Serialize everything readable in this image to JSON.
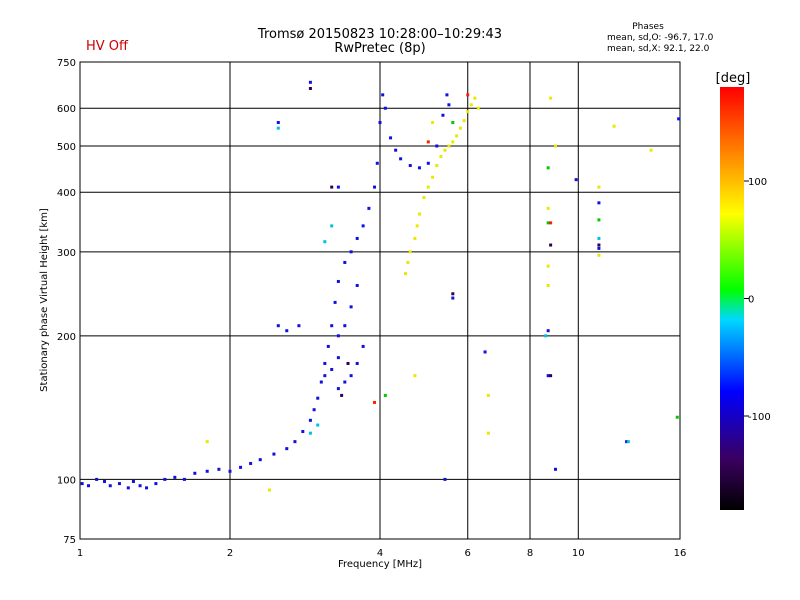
{
  "header": {
    "title_line1": "Tromsø 20150823 10:28:00–10:29:43",
    "title_line2": "RwPretec (8p)",
    "status": "HV Off",
    "status_color": "#cc0000",
    "stats_heading": "Phases",
    "stats_o": "mean, sd,O: -96.7, 17.0",
    "stats_x": "mean, sd,X:  92.1, 22.0"
  },
  "chart_data": {
    "type": "scatter",
    "title": "Tromsø 20150823 10:28:00–10:29:43",
    "subtitle": "RwPretec (8p)",
    "xlabel": "Frequency [MHz]",
    "ylabel": "Stationary phase Virtual Height [km]",
    "x_scale": "log",
    "y_scale": "log",
    "xlim": [
      1,
      16
    ],
    "ylim": [
      75,
      750
    ],
    "x_ticks": [
      1,
      2,
      4,
      6,
      8,
      10,
      16
    ],
    "x_tick_labels": [
      "1",
      "2",
      "4",
      "6",
      "8",
      "10",
      "16"
    ],
    "y_ticks": [
      75,
      100,
      200,
      300,
      400,
      500,
      600,
      750
    ],
    "y_tick_labels": [
      "75",
      "100",
      "200",
      "300",
      "400",
      "500",
      "600",
      "750"
    ],
    "grid": true,
    "colorbar": {
      "label": "[deg]",
      "range": [
        -180,
        180
      ],
      "ticks": [
        100,
        0,
        -100
      ],
      "tick_labels": [
        "100",
        "0",
        "-100"
      ],
      "colors": [
        "#000000",
        "#3a0060",
        "#0000ff",
        "#00d8ff",
        "#00ff00",
        "#ffff00",
        "#ff8000",
        "#ff0000"
      ]
    },
    "series": [
      {
        "color": "#1010e0",
        "points": [
          [
            1.01,
            98
          ],
          [
            1.04,
            97
          ],
          [
            1.08,
            100
          ],
          [
            1.12,
            99
          ],
          [
            1.15,
            97
          ],
          [
            1.2,
            98
          ],
          [
            1.25,
            96
          ],
          [
            1.28,
            99
          ],
          [
            1.32,
            97
          ],
          [
            1.36,
            96
          ],
          [
            1.42,
            98
          ],
          [
            1.48,
            100
          ],
          [
            1.55,
            101
          ],
          [
            1.62,
            100
          ],
          [
            1.7,
            103
          ],
          [
            1.8,
            104
          ],
          [
            1.9,
            105
          ],
          [
            2.0,
            104
          ],
          [
            2.1,
            106
          ],
          [
            2.2,
            108
          ],
          [
            2.3,
            110
          ],
          [
            2.45,
            113
          ],
          [
            2.6,
            116
          ],
          [
            2.7,
            120
          ],
          [
            2.8,
            126
          ],
          [
            2.9,
            133
          ],
          [
            2.95,
            140
          ],
          [
            3.0,
            148
          ],
          [
            3.05,
            160
          ],
          [
            3.1,
            175
          ],
          [
            3.15,
            190
          ],
          [
            3.2,
            210
          ],
          [
            3.25,
            235
          ],
          [
            3.3,
            260
          ],
          [
            3.4,
            285
          ],
          [
            3.5,
            300
          ],
          [
            3.6,
            320
          ],
          [
            3.7,
            340
          ],
          [
            3.8,
            370
          ],
          [
            3.9,
            410
          ],
          [
            3.95,
            460
          ],
          [
            4.0,
            560
          ],
          [
            4.05,
            640
          ],
          [
            4.1,
            600
          ],
          [
            4.2,
            520
          ],
          [
            4.3,
            490
          ],
          [
            4.4,
            470
          ],
          [
            4.6,
            455
          ],
          [
            4.8,
            450
          ],
          [
            5.0,
            460
          ],
          [
            5.2,
            500
          ],
          [
            5.35,
            580
          ],
          [
            5.45,
            640
          ],
          [
            5.5,
            610
          ],
          [
            3.3,
            155
          ],
          [
            3.4,
            160
          ],
          [
            3.5,
            165
          ],
          [
            3.6,
            175
          ],
          [
            3.7,
            190
          ],
          [
            3.3,
            200
          ],
          [
            3.4,
            210
          ],
          [
            3.5,
            230
          ],
          [
            3.6,
            255
          ],
          [
            3.1,
            165
          ],
          [
            3.2,
            170
          ],
          [
            3.3,
            180
          ],
          [
            2.5,
            210
          ],
          [
            2.6,
            205
          ],
          [
            2.75,
            210
          ],
          [
            2.5,
            560
          ],
          [
            2.9,
            680
          ],
          [
            3.3,
            410
          ],
          [
            5.6,
            240
          ],
          [
            6.5,
            185
          ],
          [
            8.7,
            205
          ],
          [
            8.7,
            165
          ],
          [
            9.0,
            105
          ],
          [
            9.9,
            425
          ],
          [
            11.0,
            380
          ],
          [
            11.0,
            305
          ],
          [
            12.5,
            120
          ],
          [
            15.9,
            570
          ],
          [
            5.4,
            100
          ]
        ]
      },
      {
        "color": "#e8e800",
        "points": [
          [
            4.5,
            270
          ],
          [
            4.55,
            285
          ],
          [
            4.6,
            300
          ],
          [
            4.7,
            320
          ],
          [
            4.75,
            340
          ],
          [
            4.8,
            360
          ],
          [
            4.9,
            390
          ],
          [
            5.0,
            410
          ],
          [
            5.1,
            430
          ],
          [
            5.2,
            455
          ],
          [
            5.3,
            475
          ],
          [
            5.4,
            490
          ],
          [
            5.5,
            500
          ],
          [
            5.6,
            510
          ],
          [
            5.7,
            525
          ],
          [
            5.8,
            545
          ],
          [
            5.9,
            565
          ],
          [
            6.0,
            590
          ],
          [
            6.1,
            610
          ],
          [
            6.2,
            630
          ],
          [
            6.3,
            600
          ],
          [
            5.1,
            560
          ],
          [
            4.7,
            165
          ],
          [
            6.6,
            150
          ],
          [
            6.6,
            125
          ],
          [
            8.8,
            630
          ],
          [
            9.0,
            500
          ],
          [
            8.7,
            370
          ],
          [
            8.7,
            280
          ],
          [
            8.7,
            255
          ],
          [
            11.0,
            410
          ],
          [
            11.0,
            295
          ],
          [
            11.8,
            550
          ],
          [
            14.0,
            490
          ],
          [
            1.8,
            120
          ],
          [
            2.4,
            95
          ]
        ]
      },
      {
        "color": "#00c800",
        "points": [
          [
            8.7,
            450
          ],
          [
            8.7,
            345
          ],
          [
            11.0,
            350
          ],
          [
            15.8,
            135
          ],
          [
            5.6,
            560
          ],
          [
            4.1,
            150
          ]
        ]
      },
      {
        "color": "#ff2000",
        "points": [
          [
            3.9,
            145
          ],
          [
            5.0,
            510
          ],
          [
            8.8,
            345
          ],
          [
            6.0,
            640
          ]
        ]
      },
      {
        "color": "#00c0e0",
        "points": [
          [
            2.9,
            125
          ],
          [
            3.0,
            130
          ],
          [
            3.2,
            340
          ],
          [
            3.1,
            315
          ],
          [
            8.6,
            200
          ],
          [
            11.0,
            320
          ],
          [
            12.6,
            120
          ],
          [
            2.5,
            545
          ]
        ]
      },
      {
        "color": "#300050",
        "points": [
          [
            2.9,
            660
          ],
          [
            3.2,
            410
          ],
          [
            8.8,
            310
          ],
          [
            8.8,
            165
          ],
          [
            11.0,
            310
          ],
          [
            5.6,
            245
          ],
          [
            3.35,
            150
          ],
          [
            3.45,
            175
          ]
        ]
      }
    ]
  }
}
